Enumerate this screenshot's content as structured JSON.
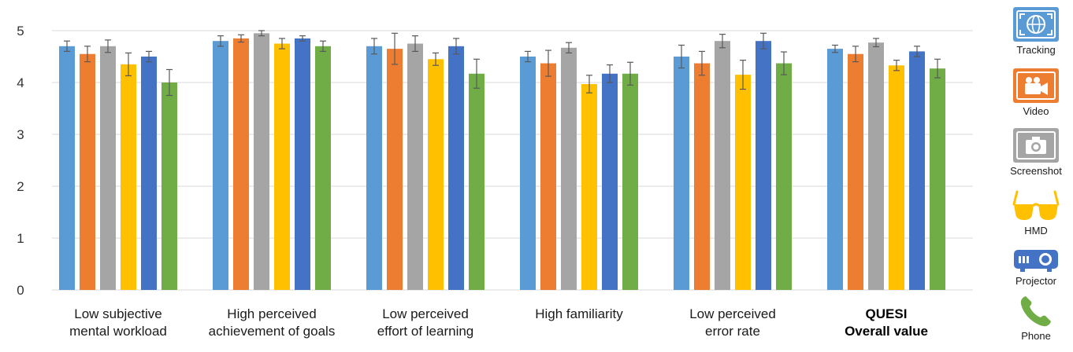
{
  "chart_data": {
    "type": "bar",
    "categories": [
      [
        "Low subjective",
        "mental workload"
      ],
      [
        "High perceived",
        "achievement of goals"
      ],
      [
        "Low perceived",
        "effort of learning"
      ],
      [
        "High familiarity"
      ],
      [
        "Low perceived",
        "error rate"
      ],
      [
        "QUESI",
        "Overall value"
      ]
    ],
    "bold_category_index": 5,
    "ylim": [
      0,
      5
    ],
    "yticks": [
      "0",
      "1",
      "2",
      "3",
      "4",
      "5"
    ],
    "grid": true,
    "legend_position": "right",
    "series": [
      {
        "name": "Tracking",
        "color": "#5B9BD5",
        "values": [
          4.7,
          4.8,
          4.7,
          4.5,
          4.5,
          4.65
        ],
        "errors": [
          0.1,
          0.1,
          0.15,
          0.1,
          0.22,
          0.07
        ]
      },
      {
        "name": "Video",
        "color": "#ED7D31",
        "values": [
          4.55,
          4.85,
          4.65,
          4.37,
          4.37,
          4.55
        ],
        "errors": [
          0.15,
          0.07,
          0.3,
          0.25,
          0.23,
          0.15
        ]
      },
      {
        "name": "Screenshot",
        "color": "#A5A5A5",
        "values": [
          4.7,
          4.95,
          4.75,
          4.67,
          4.8,
          4.77
        ],
        "errors": [
          0.12,
          0.05,
          0.15,
          0.1,
          0.13,
          0.08
        ]
      },
      {
        "name": "HMD",
        "color": "#FFC000",
        "values": [
          4.35,
          4.75,
          4.45,
          3.97,
          4.15,
          4.33
        ],
        "errors": [
          0.22,
          0.1,
          0.12,
          0.17,
          0.28,
          0.1
        ]
      },
      {
        "name": "Projector",
        "color": "#4472C4",
        "values": [
          4.5,
          4.85,
          4.7,
          4.17,
          4.8,
          4.6
        ],
        "errors": [
          0.1,
          0.05,
          0.15,
          0.17,
          0.15,
          0.1
        ]
      },
      {
        "name": "Phone",
        "color": "#70AD47",
        "values": [
          4.0,
          4.7,
          4.17,
          4.17,
          4.37,
          4.27
        ],
        "errors": [
          0.25,
          0.1,
          0.28,
          0.22,
          0.22,
          0.18
        ]
      }
    ]
  },
  "legend_icons": [
    "tracking-icon",
    "video-camera-icon",
    "camera-icon",
    "glasses-icon",
    "projector-icon",
    "phone-icon"
  ],
  "colors": {
    "grid": "#D9D9D9",
    "error_bar": "#595959",
    "icon_blue": "#5B9BD5",
    "icon_orange": "#ED7D31",
    "icon_gray": "#A5A5A5",
    "icon_yellow": "#FFC000",
    "icon_darkblue": "#4472C4",
    "icon_green": "#70AD47"
  }
}
